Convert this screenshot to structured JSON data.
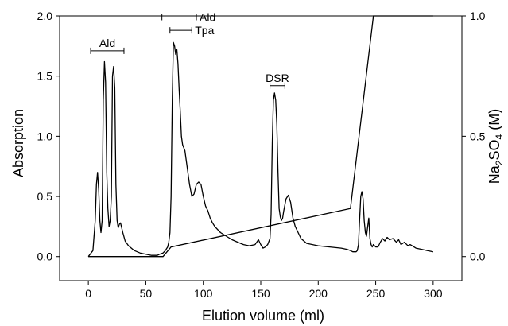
{
  "chart_data": {
    "type": "line",
    "xlabel": "Elution volume (ml)",
    "ylabel": "Absorption",
    "y2label_parts": [
      "Na",
      "2",
      "SO",
      "4",
      " (M)"
    ],
    "xlim": [
      -25,
      325
    ],
    "ylim": [
      -0.2,
      2.0
    ],
    "y2lim": [
      -0.1,
      1.0
    ],
    "x_ticks": [
      0,
      50,
      100,
      150,
      200,
      250,
      300
    ],
    "x_tick_labels": [
      "0",
      "50",
      "100",
      "150",
      "200",
      "250",
      "300"
    ],
    "y_ticks": [
      0,
      0.5,
      1.0,
      1.5,
      2.0
    ],
    "y_tick_labels": [
      "0.0",
      "0.5",
      "1.0",
      "1.5",
      "2.0"
    ],
    "y2_ticks": [
      0,
      0.5,
      1.0
    ],
    "y2_tick_labels": [
      "0.0",
      "0.5",
      "1.0"
    ],
    "series": [
      {
        "axis": "left",
        "x": [
          0,
          4,
          6,
          7,
          8,
          9,
          10,
          11,
          12,
          13,
          14,
          15,
          16,
          17,
          18,
          19,
          20,
          21,
          22,
          23,
          24,
          25,
          26,
          27,
          28,
          30,
          32,
          35,
          40,
          45,
          50,
          55,
          60,
          62,
          65,
          67,
          69,
          70,
          71,
          72,
          73,
          74,
          75,
          76,
          77,
          78,
          79,
          80,
          81,
          82,
          84,
          86,
          88,
          90,
          92,
          94,
          96,
          98,
          100,
          102,
          104,
          106,
          108,
          110,
          115,
          120,
          125,
          130,
          135,
          140,
          145,
          148,
          150,
          152,
          154,
          156,
          158,
          159,
          160,
          161,
          162,
          163,
          164,
          165,
          166,
          167,
          168,
          169,
          170,
          172,
          174,
          176,
          178,
          180,
          185,
          190,
          195,
          200,
          210,
          220,
          225,
          228,
          230,
          232,
          233,
          234,
          235,
          236,
          237,
          238,
          239,
          240,
          241,
          242,
          243,
          244,
          245,
          246,
          247,
          248,
          250,
          252,
          254,
          256,
          258,
          260,
          262,
          265,
          268,
          270,
          272,
          275,
          278,
          280,
          285,
          290,
          295,
          300
        ],
        "y": [
          0.0,
          0.05,
          0.3,
          0.6,
          0.7,
          0.55,
          0.3,
          0.2,
          0.3,
          1.3,
          1.62,
          1.45,
          0.7,
          0.4,
          0.25,
          0.3,
          0.5,
          1.5,
          1.58,
          1.4,
          0.6,
          0.3,
          0.24,
          0.27,
          0.28,
          0.2,
          0.13,
          0.09,
          0.05,
          0.03,
          0.02,
          0.01,
          0.01,
          0.02,
          0.03,
          0.05,
          0.08,
          0.12,
          0.2,
          0.5,
          1.3,
          1.78,
          1.75,
          1.68,
          1.72,
          1.6,
          1.38,
          1.2,
          1.0,
          0.93,
          0.88,
          0.74,
          0.6,
          0.5,
          0.52,
          0.6,
          0.62,
          0.6,
          0.5,
          0.42,
          0.38,
          0.32,
          0.28,
          0.25,
          0.2,
          0.17,
          0.14,
          0.12,
          0.1,
          0.09,
          0.1,
          0.14,
          0.1,
          0.07,
          0.08,
          0.1,
          0.15,
          0.35,
          0.95,
          1.3,
          1.36,
          1.3,
          1.1,
          0.7,
          0.4,
          0.33,
          0.3,
          0.32,
          0.38,
          0.48,
          0.51,
          0.45,
          0.32,
          0.25,
          0.15,
          0.11,
          0.1,
          0.09,
          0.08,
          0.07,
          0.06,
          0.05,
          0.04,
          0.04,
          0.04,
          0.05,
          0.1,
          0.3,
          0.5,
          0.54,
          0.48,
          0.3,
          0.2,
          0.17,
          0.25,
          0.32,
          0.15,
          0.1,
          0.08,
          0.1,
          0.08,
          0.08,
          0.12,
          0.15,
          0.13,
          0.16,
          0.14,
          0.15,
          0.12,
          0.14,
          0.1,
          0.12,
          0.09,
          0.1,
          0.07,
          0.06,
          0.05,
          0.04
        ]
      },
      {
        "axis": "right",
        "x": [
          0,
          65,
          72,
          228,
          248,
          300
        ],
        "y": [
          0,
          0,
          0.04,
          0.2,
          1.0,
          1.0
        ]
      }
    ],
    "annotations": [
      {
        "label": "Ald",
        "x_start": 2,
        "x_end": 31,
        "y": 1.71,
        "label_pos": "above"
      },
      {
        "label": "Ald",
        "x_start": 64,
        "x_end": 94,
        "y": 1.99,
        "label_pos": "right"
      },
      {
        "label": "Tpa",
        "x_start": 71,
        "x_end": 90,
        "y": 1.88,
        "label_pos": "right"
      },
      {
        "label": "DSR",
        "x_start": 158,
        "x_end": 171,
        "y": 1.42,
        "label_pos": "above"
      }
    ]
  }
}
